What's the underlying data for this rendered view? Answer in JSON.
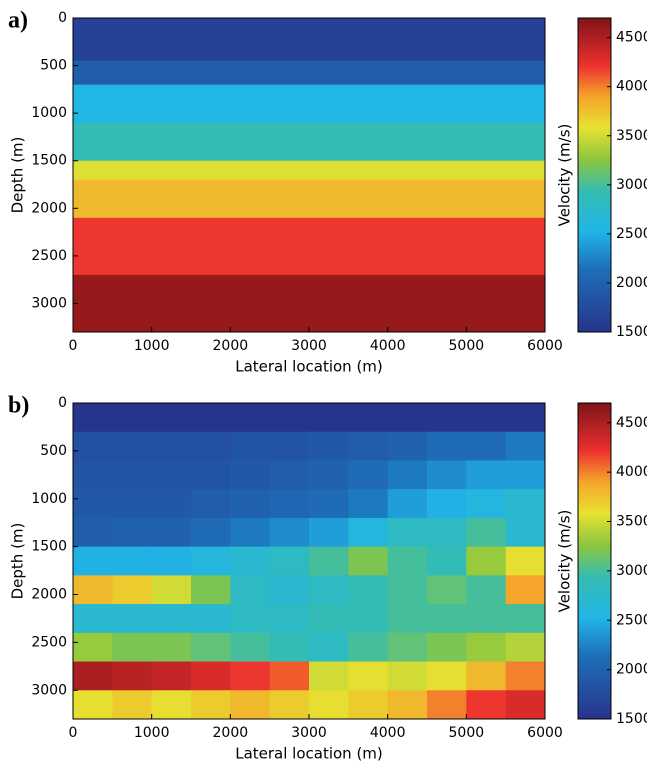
{
  "chart_data": [
    {
      "type": "heatmap",
      "panel_label": "a)",
      "xlabel": "Lateral location (m)",
      "ylabel": "Depth (m)",
      "colorbar_label": "Velocity (m/s)",
      "colormap": "jet",
      "y_reversed": true,
      "x_edges": [
        0,
        6000
      ],
      "y_edges": [
        0,
        450,
        700,
        1100,
        1500,
        1700,
        2100,
        2700,
        3300
      ],
      "values": [
        [
          1650
        ],
        [
          1950
        ],
        [
          2550
        ],
        [
          2900
        ],
        [
          3550
        ],
        [
          3800
        ],
        [
          4200
        ],
        [
          4600
        ]
      ],
      "xlim": [
        0,
        6000
      ],
      "ylim": [
        0,
        3300
      ],
      "clim": [
        1500,
        4700
      ],
      "xticks": [
        0,
        1000,
        2000,
        3000,
        4000,
        5000,
        6000
      ],
      "yticks": [
        0,
        500,
        1000,
        1500,
        2000,
        2500,
        3000
      ],
      "cticks": [
        1500,
        2000,
        2500,
        3000,
        3500,
        4000,
        4500
      ]
    },
    {
      "type": "heatmap",
      "panel_label": "b)",
      "xlabel": "Lateral location (m)",
      "ylabel": "Depth (m)",
      "colorbar_label": "Velocity (m/s)",
      "colormap": "jet",
      "y_reversed": true,
      "x_edges": [
        0,
        500,
        1000,
        1500,
        2000,
        2500,
        3000,
        3500,
        4000,
        4500,
        5000,
        5500,
        6000
      ],
      "y_edges": [
        0,
        300,
        600,
        900,
        1200,
        1500,
        1800,
        2100,
        2400,
        2700,
        3000,
        3300
      ],
      "values": [
        [
          1500,
          1500,
          1500,
          1500,
          1500,
          1500,
          1500,
          1500,
          1500,
          1500,
          1500,
          1500
        ],
        [
          1800,
          1800,
          1800,
          1800,
          1850,
          1850,
          1900,
          1950,
          2000,
          2100,
          2100,
          2200
        ],
        [
          1850,
          1850,
          1850,
          1850,
          1900,
          1950,
          2000,
          2100,
          2200,
          2300,
          2400,
          2400
        ],
        [
          1900,
          1900,
          1900,
          1950,
          2000,
          2050,
          2100,
          2200,
          2400,
          2500,
          2600,
          2700
        ],
        [
          1950,
          2000,
          2000,
          2100,
          2200,
          2300,
          2400,
          2600,
          2800,
          2800,
          3000,
          2700
        ],
        [
          2500,
          2500,
          2500,
          2600,
          2700,
          2800,
          3000,
          3200,
          3000,
          2900,
          3300,
          3600
        ],
        [
          3800,
          3700,
          3500,
          3200,
          2800,
          2700,
          2800,
          2900,
          3000,
          3100,
          3000,
          3900
        ],
        [
          2700,
          2700,
          2700,
          2700,
          2800,
          2800,
          2900,
          2900,
          3000,
          3000,
          3000,
          3000
        ],
        [
          3300,
          3200,
          3200,
          3100,
          3000,
          2900,
          2800,
          3000,
          3100,
          3200,
          3300,
          3400
        ],
        [
          4500,
          4450,
          4400,
          4300,
          4200,
          4100,
          3500,
          3600,
          3500,
          3600,
          3800,
          4000
        ],
        [
          3600,
          3700,
          3600,
          3700,
          3800,
          3700,
          3600,
          3700,
          3800,
          4000,
          4200,
          4300
        ]
      ],
      "xlim": [
        0,
        6000
      ],
      "ylim": [
        0,
        3300
      ],
      "clim": [
        1500,
        4700
      ],
      "xticks": [
        0,
        1000,
        2000,
        3000,
        4000,
        5000,
        6000
      ],
      "yticks": [
        0,
        500,
        1000,
        1500,
        2000,
        2500,
        3000
      ],
      "cticks": [
        1500,
        2000,
        2500,
        3000,
        3500,
        4000,
        4500
      ]
    }
  ]
}
